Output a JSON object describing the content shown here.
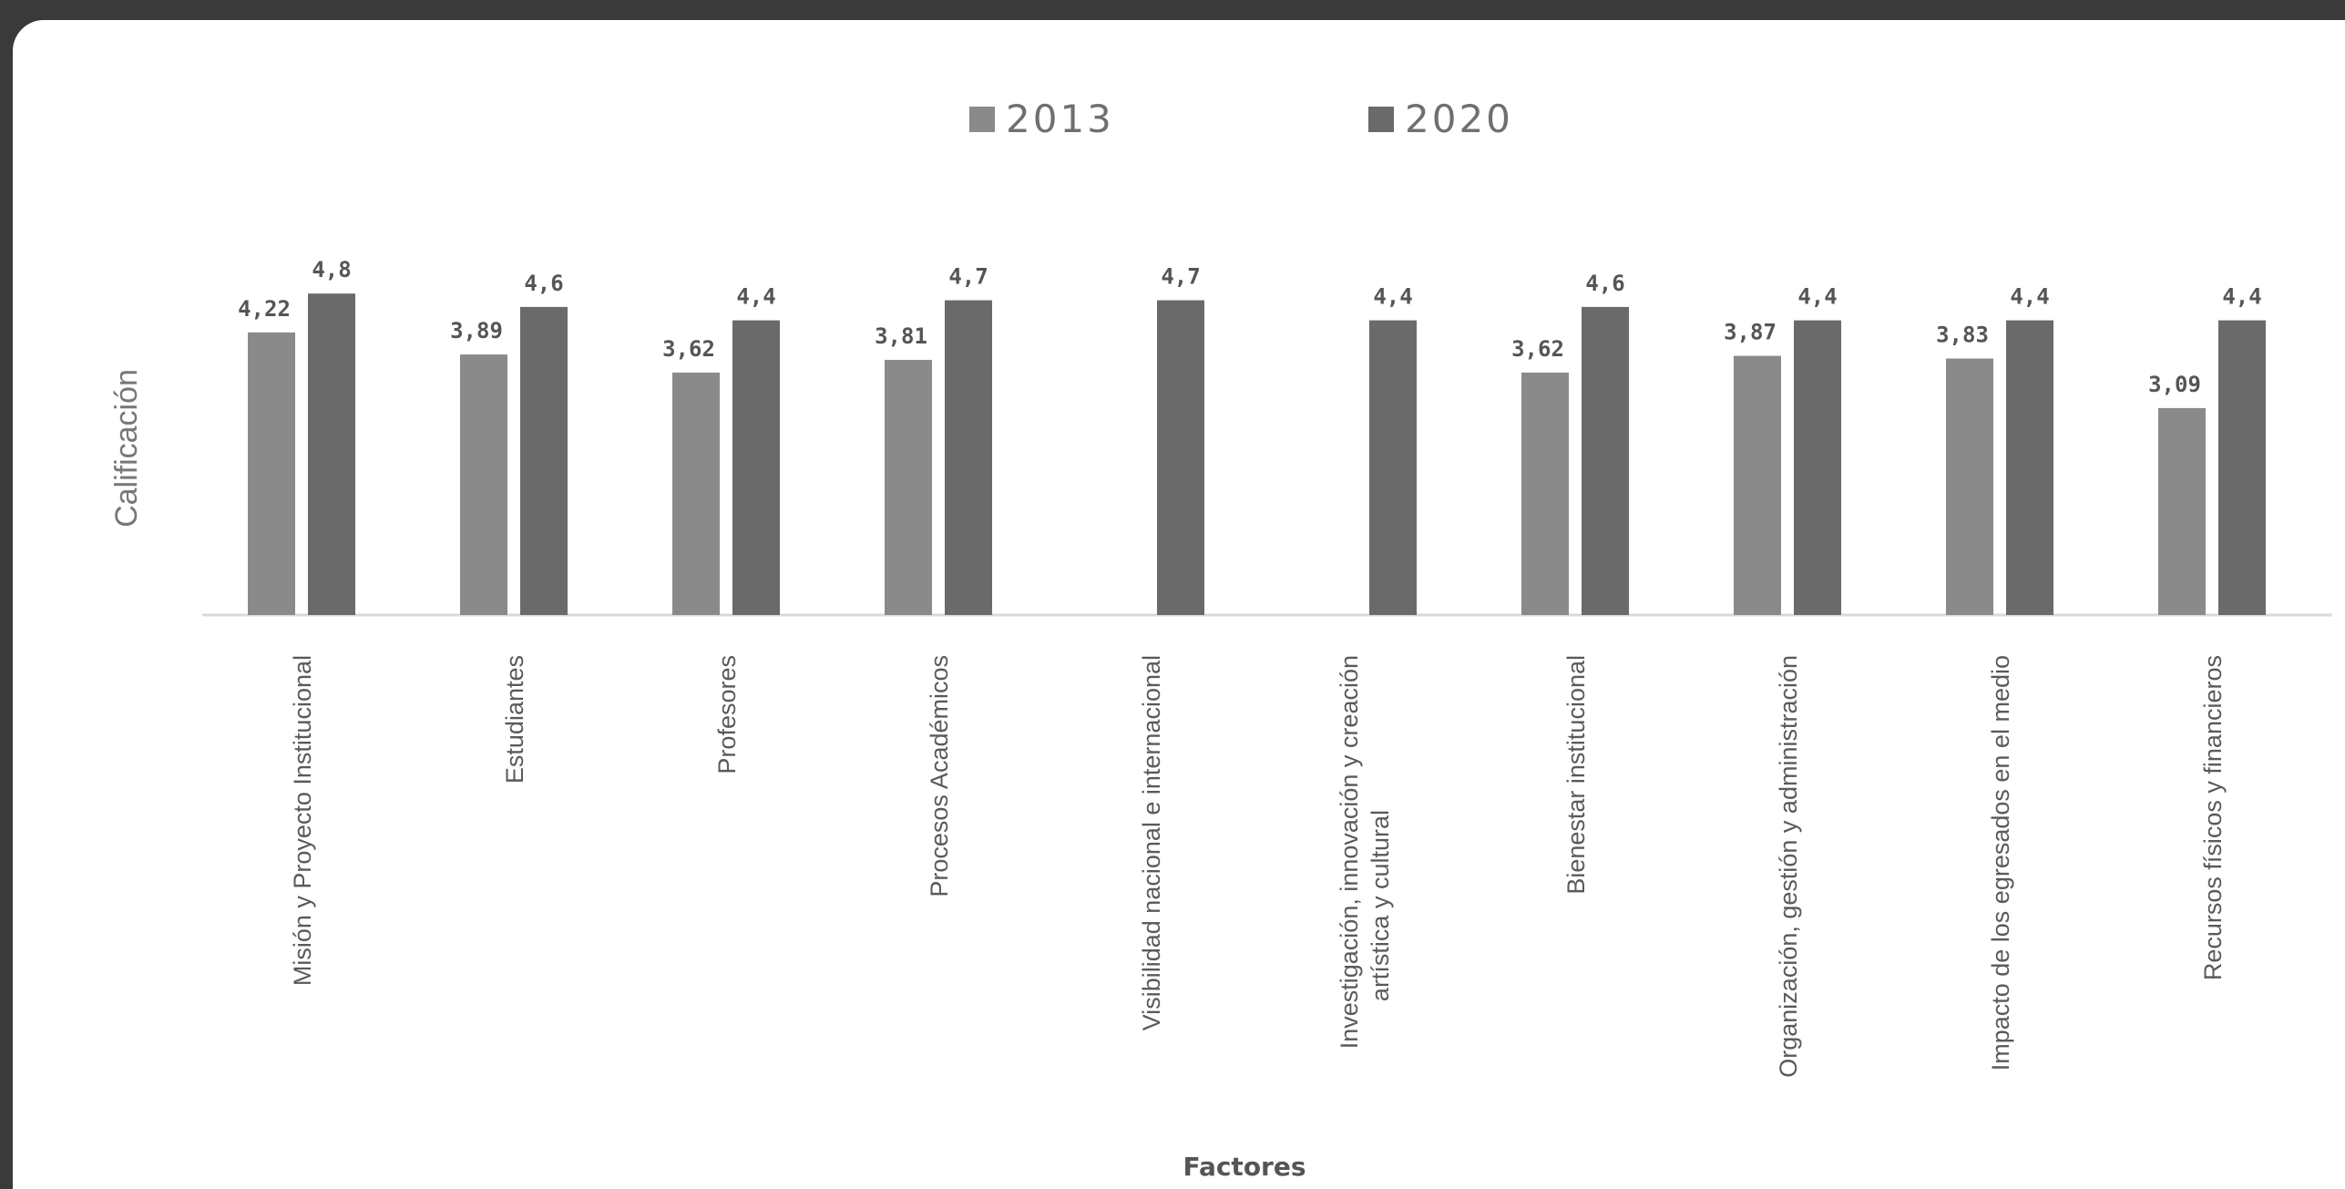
{
  "chart_data": {
    "type": "bar",
    "title": "",
    "xlabel": "Factores",
    "ylabel": "Calificación",
    "ylim": [
      0,
      5
    ],
    "grid": false,
    "legend": "top-center",
    "categories": [
      "Misión y Proyecto Institucional",
      "Estudiantes",
      "Profesores",
      "Procesos Académicos",
      "Visibilidad nacional e internacional",
      "Investigación, innovación y creación artística y cultural",
      "Bienestar institucional",
      "Organización, gestión y administración",
      "Impacto de los egresados en el medio",
      "Recursos físicos y financieros"
    ],
    "series": [
      {
        "name": "2013",
        "color": "#8a8a8a",
        "values": [
          4.22,
          3.89,
          3.62,
          3.81,
          null,
          null,
          3.62,
          3.87,
          3.83,
          3.09
        ],
        "labels": [
          "4,22",
          "3,89",
          "3,62",
          "3,81",
          "",
          "",
          "3,62",
          "3,87",
          "3,83",
          "3,09"
        ]
      },
      {
        "name": "2020",
        "color": "#6a6a6a",
        "values": [
          4.8,
          4.6,
          4.4,
          4.7,
          4.7,
          4.4,
          4.6,
          4.4,
          4.4,
          4.4
        ],
        "labels": [
          "4,8",
          "4,6",
          "4,4",
          "4,7",
          "4,7",
          "4,4",
          "4,6",
          "4,4",
          "4,4",
          "4,4"
        ]
      }
    ]
  }
}
